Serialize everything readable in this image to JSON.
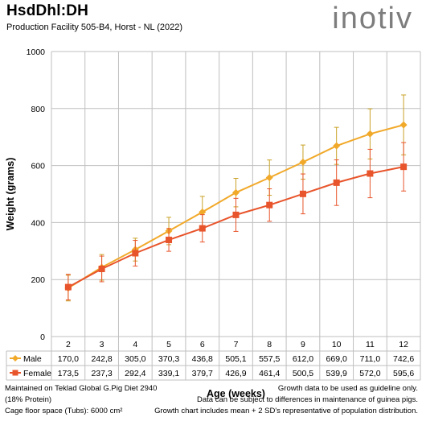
{
  "header": {
    "title": "HsdDhl:DH",
    "subtitle": "Production Facility 505-B4, Horst - NL (2022)",
    "logo_text": "inotiv"
  },
  "colors": {
    "male": "#f1a92a",
    "female": "#e8542b",
    "errorbar_male": "#c9a227",
    "errorbar_female": "#e8542b",
    "grid": "#bfbfbf",
    "logo": "#7d7d7d"
  },
  "chart_data": {
    "type": "line",
    "title": "",
    "xlabel": "Age (weeks)",
    "ylabel": "Weight (grams)",
    "ylim": [
      0,
      1000
    ],
    "yticks": [
      "0",
      "200",
      "400",
      "600",
      "800",
      "1000"
    ],
    "categories": [
      "2",
      "3",
      "4",
      "5",
      "6",
      "7",
      "8",
      "9",
      "10",
      "11",
      "12"
    ],
    "grid": true,
    "legend": "data table below plot",
    "series": [
      {
        "name": "Male",
        "marker": "diamond",
        "values": [
          170.0,
          242.8,
          305.0,
          370.3,
          436.8,
          505.1,
          557.5,
          612.0,
          669.0,
          711.0,
          742.6
        ],
        "labels": [
          "170,0",
          "242,8",
          "305,0",
          "370,3",
          "436,8",
          "505,1",
          "557,5",
          "612,0",
          "669,0",
          "711,0",
          "742,6"
        ],
        "error": [
          45,
          45,
          40,
          48,
          55,
          50,
          62,
          60,
          65,
          88,
          105
        ]
      },
      {
        "name": "Female",
        "marker": "square",
        "values": [
          173.5,
          237.3,
          292.4,
          339.1,
          379.7,
          426.9,
          461.4,
          500.5,
          539.9,
          572.0,
          595.6
        ],
        "labels": [
          "173,5",
          "237,3",
          "292,4",
          "339,1",
          "379,7",
          "426,9",
          "461,4",
          "500,5",
          "539,9",
          "572,0",
          "595,6"
        ],
        "error": [
          45,
          45,
          45,
          40,
          48,
          58,
          57,
          70,
          80,
          85,
          85
        ]
      }
    ]
  },
  "footer": {
    "left": [
      "Maintained on Teklad Global G.Pig Diet 2940",
      "(18% Protein)",
      "Cage floor space (Tubs): 6000 cm²"
    ],
    "right": [
      "Growth data to be used as guideline only.",
      "Data can be subject to differences in maintenance of guinea pigs.",
      "Growth chart includes mean + 2 SD's representative of population distribution."
    ]
  }
}
